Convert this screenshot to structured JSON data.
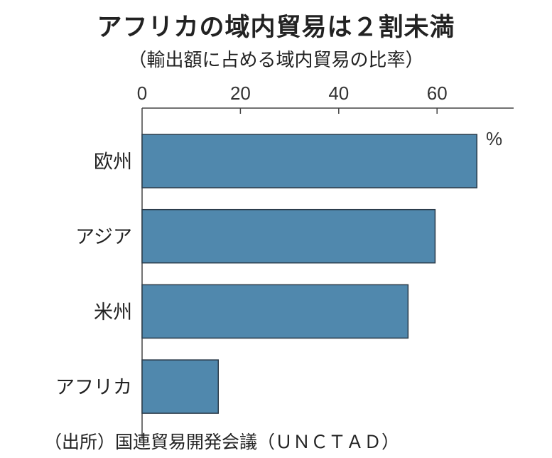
{
  "chart_data": {
    "type": "bar",
    "orientation": "horizontal",
    "title": "アフリカの域内貿易は２割未満",
    "subtitle": "（輸出額に占める域内貿易の比率）",
    "categories": [
      "欧州",
      "アジア",
      "米州",
      "アフリカ"
    ],
    "values": [
      68.1,
      59.6,
      54.1,
      15.5
    ],
    "unit": "%",
    "xlim": [
      0,
      76
    ],
    "xticks": [
      "0",
      "20",
      "40",
      "60"
    ],
    "xtick_values": [
      0,
      20,
      40,
      60
    ],
    "bar_color": "#5088ad",
    "source": "（出所）国連貿易開発会議（ＵＮＣＴＡＤ）"
  }
}
